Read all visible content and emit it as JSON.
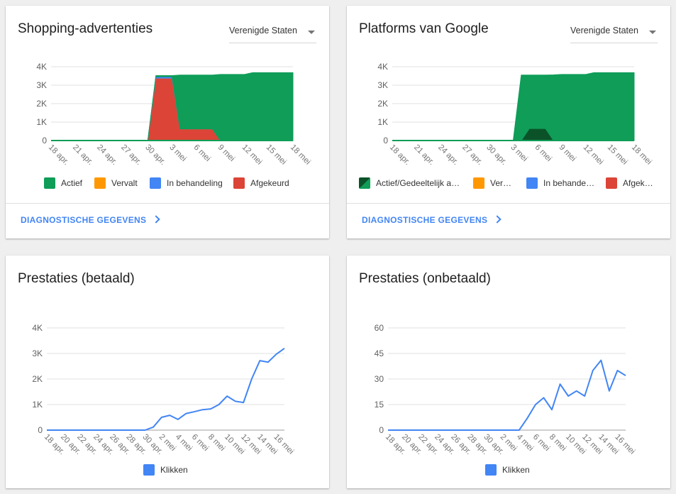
{
  "cards": [
    {
      "title": "Shopping-advertenties",
      "country_select": "Verenigde Staten",
      "link": "DIAGNOSTISCHE GEGEVENS",
      "legend": [
        {
          "label": "Actief",
          "color": "#0f9d58"
        },
        {
          "label": "Vervalt",
          "color": "#ff9800"
        },
        {
          "label": "In behandeling",
          "color": "#4285f4"
        },
        {
          "label": "Afgekeurd",
          "color": "#db4437"
        }
      ]
    },
    {
      "title": "Platforms van Google",
      "country_select": "Verenigde Staten",
      "link": "DIAGNOSTISCHE GEGEVENS",
      "legend": [
        {
          "label": "Actief/Gedeeltelijk actief",
          "color": "#0f9d58"
        },
        {
          "label": "Vervalt",
          "color": "#ff9800"
        },
        {
          "label": "In behandeling",
          "color": "#4285f4"
        },
        {
          "label": "Afgekeurd",
          "color": "#db4437"
        }
      ]
    },
    {
      "title": "Prestaties (betaald)",
      "legend": [
        {
          "label": "Klikken",
          "color": "#4285f4"
        }
      ]
    },
    {
      "title": "Prestaties (onbetaald)",
      "legend": [
        {
          "label": "Klikken",
          "color": "#4285f4"
        }
      ]
    }
  ],
  "chart_data": [
    {
      "type": "area",
      "stacked": true,
      "x": [
        "18 apr.",
        "19 apr.",
        "20 apr.",
        "21 apr.",
        "22 apr.",
        "23 apr.",
        "24 apr.",
        "25 apr.",
        "26 apr.",
        "27 apr.",
        "28 apr.",
        "29 apr.",
        "30 apr.",
        "1 mei",
        "2 mei",
        "3 mei",
        "4 mei",
        "5 mei",
        "6 mei",
        "7 mei",
        "8 mei",
        "9 mei",
        "10 mei",
        "11 mei",
        "12 mei",
        "13 mei",
        "14 mei",
        "15 mei",
        "16 mei",
        "17 mei",
        "18 mei"
      ],
      "x_tick_labels": [
        "18 apr.",
        "21 apr.",
        "24 apr.",
        "27 apr.",
        "30 apr.",
        "3 mei",
        "6 mei",
        "9 mei",
        "12 mei",
        "15 mei",
        "18 mei"
      ],
      "y_tick_labels": [
        "0",
        "1K",
        "2K",
        "3K",
        "4K"
      ],
      "ylim": [
        0,
        4000
      ],
      "grid": true,
      "legend_position": "bottom",
      "series": [
        {
          "name": "Afgekeurd",
          "color": "#db4437",
          "values": [
            0,
            0,
            0,
            0,
            0,
            0,
            0,
            0,
            0,
            0,
            0,
            0,
            0,
            3380,
            3380,
            3380,
            630,
            630,
            630,
            630,
            630,
            0,
            0,
            0,
            0,
            0,
            0,
            0,
            0,
            0,
            0
          ]
        },
        {
          "name": "Vervalt",
          "color": "#ff9800",
          "values": [
            0,
            0,
            0,
            0,
            0,
            0,
            0,
            0,
            0,
            0,
            0,
            0,
            0,
            0,
            0,
            0,
            0,
            0,
            0,
            0,
            0,
            0,
            0,
            0,
            0,
            0,
            0,
            0,
            0,
            0,
            0
          ]
        },
        {
          "name": "In behandeling",
          "color": "#4285f4",
          "values": [
            0,
            0,
            0,
            0,
            0,
            0,
            0,
            0,
            0,
            0,
            0,
            0,
            0,
            80,
            80,
            80,
            0,
            0,
            0,
            0,
            0,
            0,
            0,
            0,
            0,
            0,
            0,
            0,
            0,
            0,
            0
          ]
        },
        {
          "name": "Actief",
          "color": "#0f9d58",
          "values": [
            0,
            0,
            0,
            0,
            0,
            0,
            0,
            0,
            0,
            0,
            0,
            0,
            0,
            60,
            60,
            60,
            2920,
            2920,
            2920,
            2920,
            2920,
            3580,
            3580,
            3580,
            3580,
            3680,
            3680,
            3680,
            3680,
            3680,
            3680
          ]
        }
      ]
    },
    {
      "type": "area",
      "stacked": true,
      "x": [
        "18 apr.",
        "19 apr.",
        "20 apr.",
        "21 apr.",
        "22 apr.",
        "23 apr.",
        "24 apr.",
        "25 apr.",
        "26 apr.",
        "27 apr.",
        "28 apr.",
        "29 apr.",
        "30 apr.",
        "1 mei",
        "2 mei",
        "3 mei",
        "4 mei",
        "5 mei",
        "6 mei",
        "7 mei",
        "8 mei",
        "9 mei",
        "10 mei",
        "11 mei",
        "12 mei",
        "13 mei",
        "14 mei",
        "15 mei",
        "16 mei",
        "17 mei",
        "18 mei"
      ],
      "x_tick_labels": [
        "18 apr.",
        "21 apr.",
        "24 apr.",
        "27 apr.",
        "30 apr.",
        "3 mei",
        "6 mei",
        "9 mei",
        "12 mei",
        "15 mei",
        "18 mei"
      ],
      "y_tick_labels": [
        "0",
        "1K",
        "2K",
        "3K",
        "4K"
      ],
      "ylim": [
        0,
        4000
      ],
      "grid": true,
      "legend_position": "bottom",
      "series": [
        {
          "name": "Gedeeltelijk actief",
          "color": "#0b5229",
          "values": [
            0,
            0,
            0,
            0,
            0,
            0,
            0,
            0,
            0,
            0,
            0,
            0,
            0,
            0,
            0,
            0,
            0,
            650,
            650,
            650,
            0,
            0,
            0,
            0,
            0,
            0,
            0,
            0,
            0,
            0,
            0
          ]
        },
        {
          "name": "Actief",
          "color": "#0f9d58",
          "values": [
            0,
            0,
            0,
            0,
            0,
            0,
            0,
            0,
            0,
            0,
            0,
            0,
            0,
            0,
            0,
            0,
            3550,
            2900,
            2900,
            2900,
            3560,
            3580,
            3580,
            3580,
            3580,
            3680,
            3680,
            3680,
            3680,
            3680,
            3680
          ]
        }
      ]
    },
    {
      "type": "line",
      "x": [
        "18 apr.",
        "19 apr.",
        "20 apr.",
        "21 apr.",
        "22 apr.",
        "23 apr.",
        "24 apr.",
        "25 apr.",
        "26 apr.",
        "27 apr.",
        "28 apr.",
        "29 apr.",
        "30 apr.",
        "1 mei",
        "2 mei",
        "3 mei",
        "4 mei",
        "5 mei",
        "6 mei",
        "7 mei",
        "8 mei",
        "9 mei",
        "10 mei",
        "11 mei",
        "12 mei",
        "13 mei",
        "14 mei",
        "15 mei",
        "16 mei",
        "17 mei"
      ],
      "x_tick_labels": [
        "18 apr.",
        "20 apr.",
        "22 apr.",
        "24 apr.",
        "26 apr.",
        "28 apr.",
        "30 apr.",
        "2 mei",
        "4 mei",
        "6 mei",
        "8 mei",
        "10 mei",
        "12 mei",
        "14 mei",
        "16 mei"
      ],
      "y_tick_labels": [
        "0",
        "1K",
        "2K",
        "3K",
        "4K"
      ],
      "ylim": [
        0,
        4000
      ],
      "grid": true,
      "legend_position": "bottom",
      "series": [
        {
          "name": "Klikken",
          "color": "#4285f4",
          "values": [
            0,
            0,
            0,
            0,
            0,
            0,
            0,
            0,
            0,
            0,
            0,
            0,
            0,
            120,
            500,
            580,
            420,
            650,
            720,
            800,
            830,
            1000,
            1330,
            1130,
            1080,
            2000,
            2720,
            2660,
            2970,
            3200
          ]
        }
      ]
    },
    {
      "type": "line",
      "x": [
        "18 apr.",
        "19 apr.",
        "20 apr.",
        "21 apr.",
        "22 apr.",
        "23 apr.",
        "24 apr.",
        "25 apr.",
        "26 apr.",
        "27 apr.",
        "28 apr.",
        "29 apr.",
        "30 apr.",
        "1 mei",
        "2 mei",
        "3 mei",
        "4 mei",
        "5 mei",
        "6 mei",
        "7 mei",
        "8 mei",
        "9 mei",
        "10 mei",
        "11 mei",
        "12 mei",
        "13 mei",
        "14 mei",
        "15 mei",
        "16 mei",
        "17 mei"
      ],
      "x_tick_labels": [
        "18 apr.",
        "20 apr.",
        "22 apr.",
        "24 apr.",
        "26 apr.",
        "28 apr.",
        "30 apr.",
        "2 mei",
        "4 mei",
        "6 mei",
        "8 mei",
        "10 mei",
        "12 mei",
        "14 mei",
        "16 mei"
      ],
      "y_tick_labels": [
        "0",
        "15",
        "30",
        "45",
        "60"
      ],
      "ylim": [
        0,
        60
      ],
      "grid": true,
      "legend_position": "bottom",
      "series": [
        {
          "name": "Klikken",
          "color": "#4285f4",
          "values": [
            0,
            0,
            0,
            0,
            0,
            0,
            0,
            0,
            0,
            0,
            0,
            0,
            0,
            0,
            0,
            0,
            0,
            7,
            15,
            19,
            12,
            27,
            20,
            23,
            20,
            35,
            41,
            23,
            35,
            32
          ]
        }
      ]
    }
  ]
}
